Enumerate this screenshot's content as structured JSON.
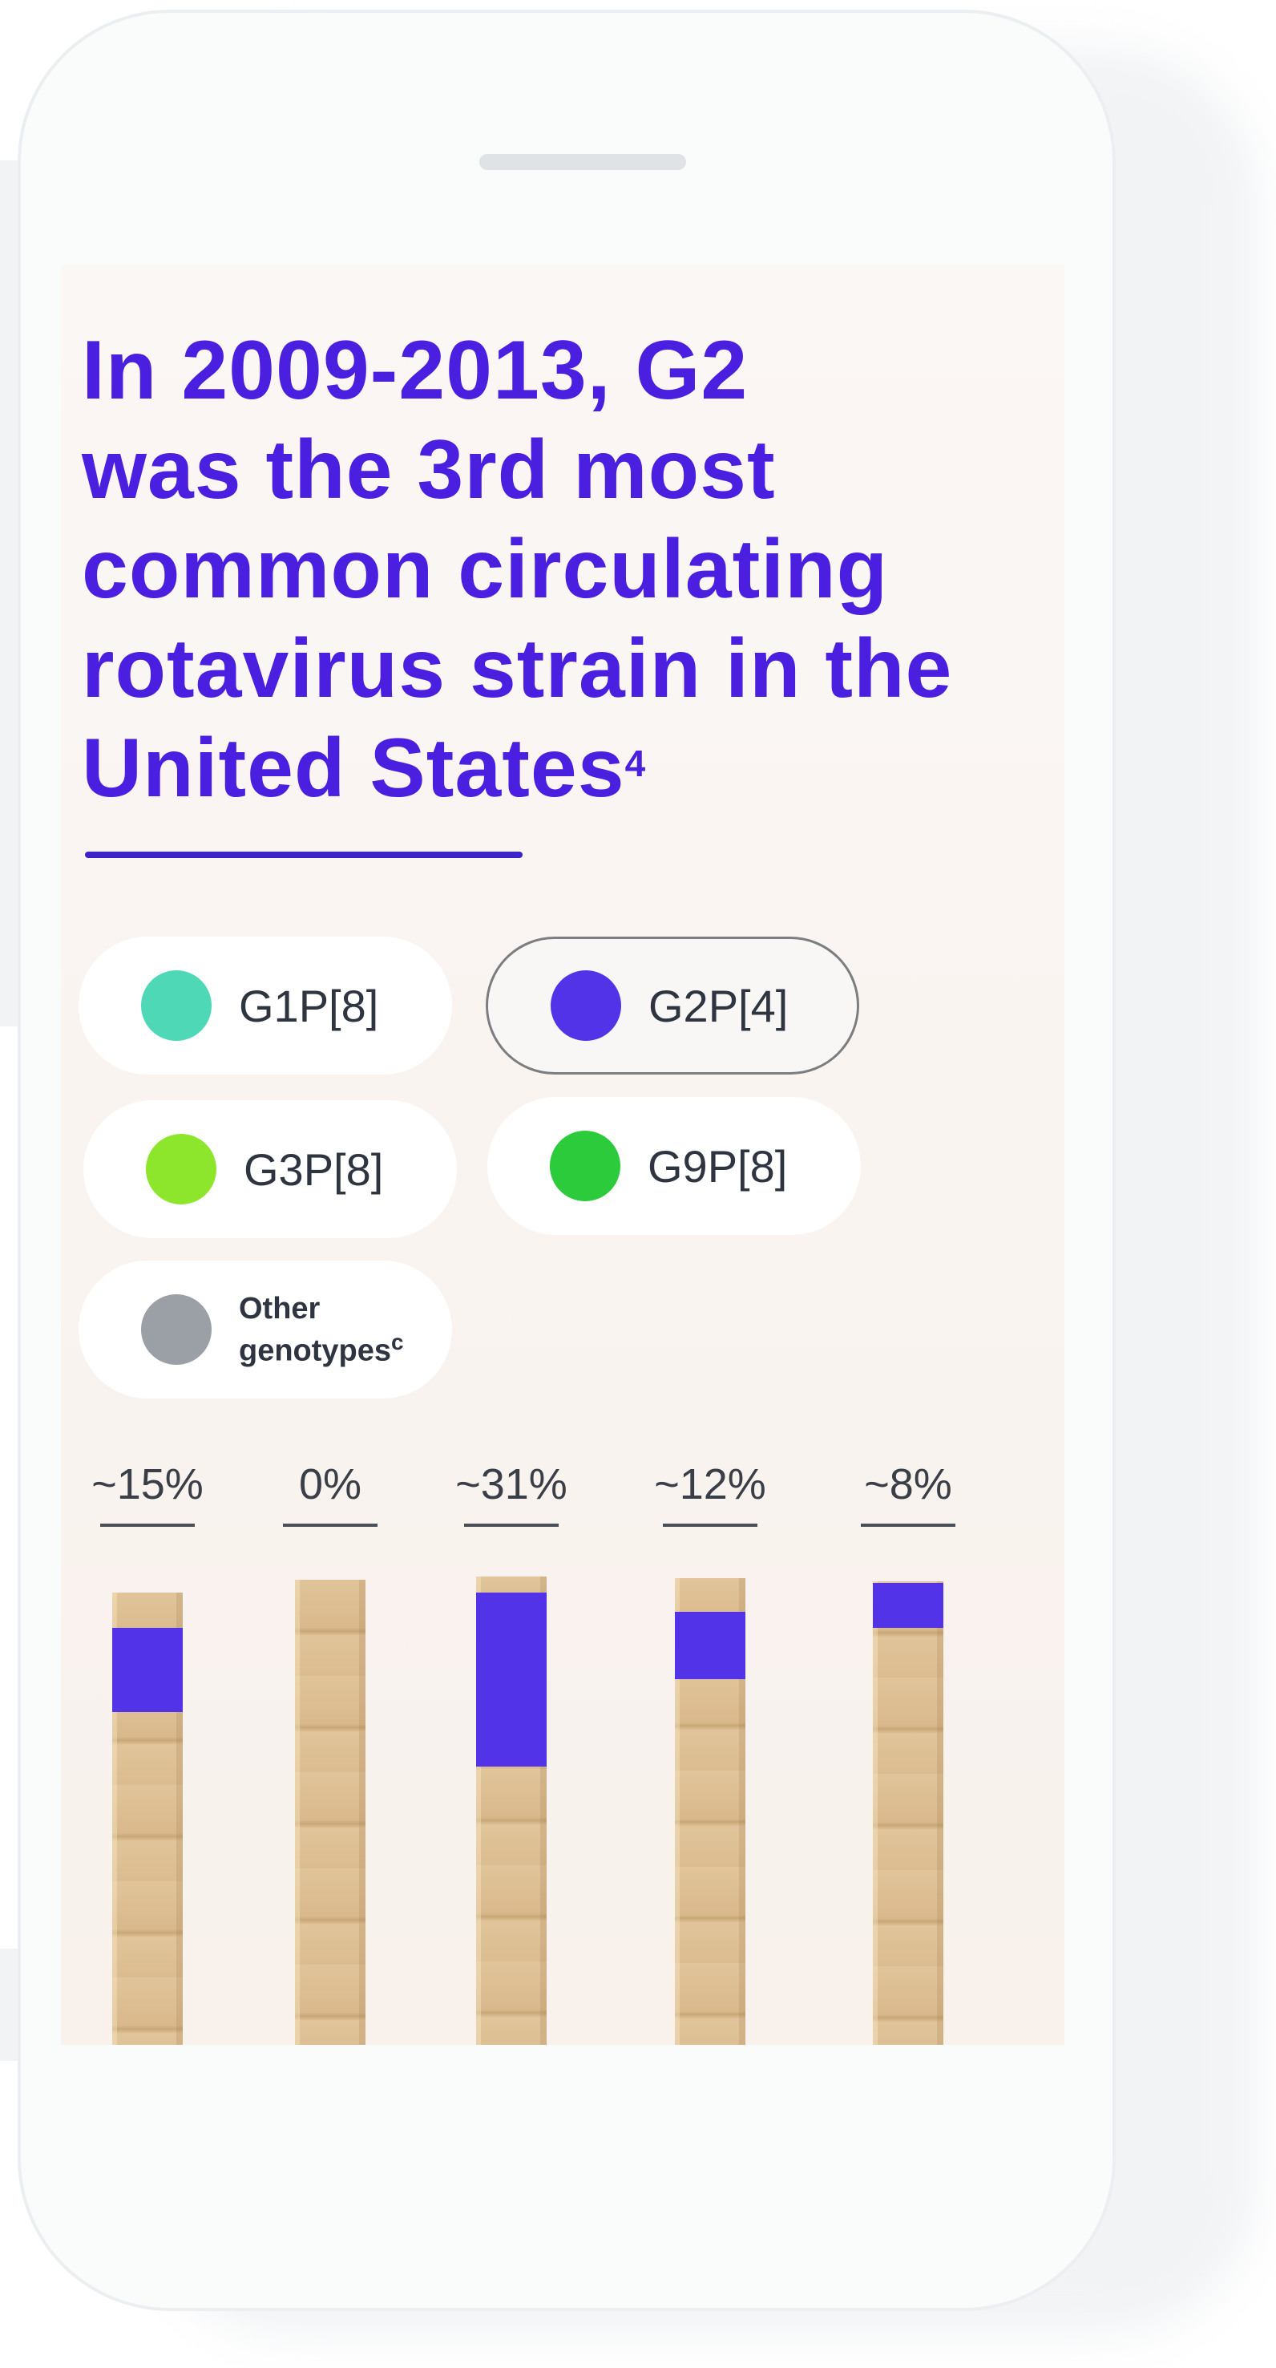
{
  "title": {
    "lines": [
      "In 2009-2013, G2",
      "was the 3rd most",
      "common circulating",
      "rotavirus strain in the",
      "United States"
    ],
    "superscript": "4"
  },
  "legend": [
    {
      "label": "G1P[8]",
      "color": "#4fd8b6",
      "selected": false
    },
    {
      "label": "G2P[4]",
      "color": "#5233e8",
      "selected": true
    },
    {
      "label": "G3P[8]",
      "color": "#8de52c",
      "selected": false
    },
    {
      "label": "G9P[8]",
      "color": "#2ccb3b",
      "selected": false
    },
    {
      "label_line1": "Other",
      "label_line2": "genotypes",
      "superscript": "c",
      "color": "#9aa0a6",
      "selected": false
    }
  ],
  "chart_data": {
    "type": "bar",
    "categories": [
      "",
      "",
      "",
      "",
      ""
    ],
    "series": [
      {
        "name": "G2P[4]",
        "values": [
          15,
          0,
          31,
          12,
          8
        ]
      }
    ],
    "data_labels": [
      "~15%",
      "0%",
      "~31%",
      "~12%",
      "~8%"
    ],
    "ylim": [
      0,
      100
    ]
  },
  "colors": {
    "accent": "#4b1fe0",
    "rule": "#3a24c9",
    "g2": "#5233e8"
  }
}
